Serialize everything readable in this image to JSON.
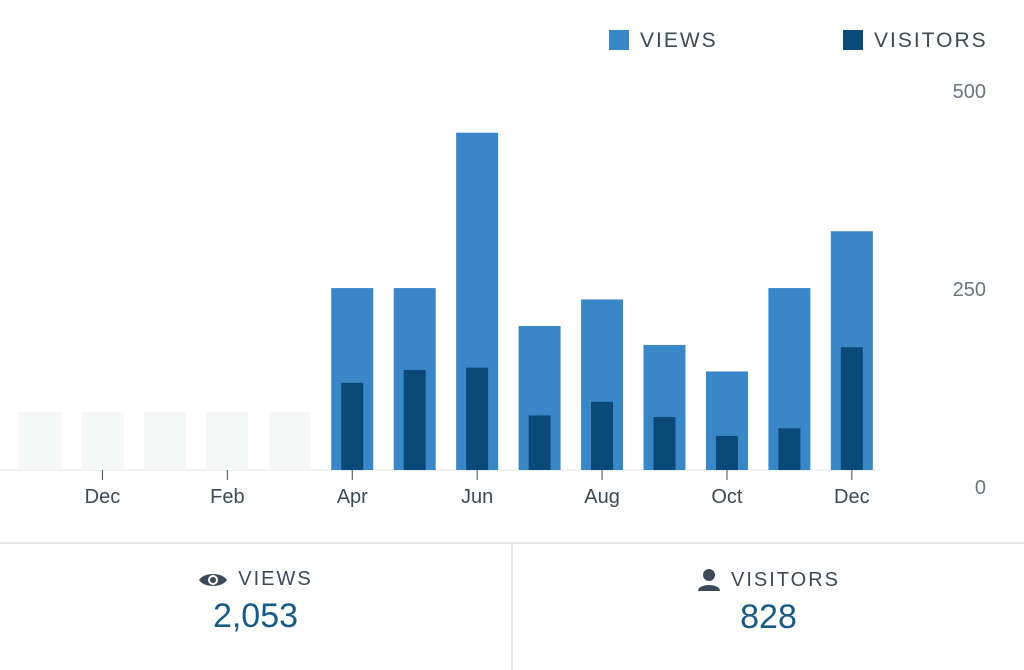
{
  "chart_data": {
    "type": "bar",
    "categories": [
      "",
      "Dec",
      "",
      "Feb",
      "",
      "Apr",
      "",
      "Jun",
      "",
      "Aug",
      "",
      "Oct",
      "",
      "Dec"
    ],
    "series": [
      {
        "name": "VIEWS",
        "values": [
          0,
          0,
          0,
          0,
          0,
          240,
          240,
          445,
          190,
          225,
          165,
          130,
          240,
          315
        ]
      },
      {
        "name": "VISITORS",
        "values": [
          0,
          0,
          0,
          0,
          0,
          115,
          132,
          135,
          72,
          90,
          70,
          45,
          55,
          162
        ]
      }
    ],
    "y_ticks": [
      "500",
      "250",
      "0"
    ],
    "ylim": [
      0,
      500
    ],
    "legend": "top-right",
    "grid": false,
    "colors": {
      "views": "#3a87c8",
      "visitors": "#0b4a78",
      "placeholder": "#f6f7f7"
    }
  },
  "summary": {
    "views": {
      "label": "VIEWS",
      "value": "2,053",
      "icon": "eye-icon"
    },
    "visitors": {
      "label": "VISITORS",
      "value": "828",
      "icon": "person-icon"
    }
  }
}
